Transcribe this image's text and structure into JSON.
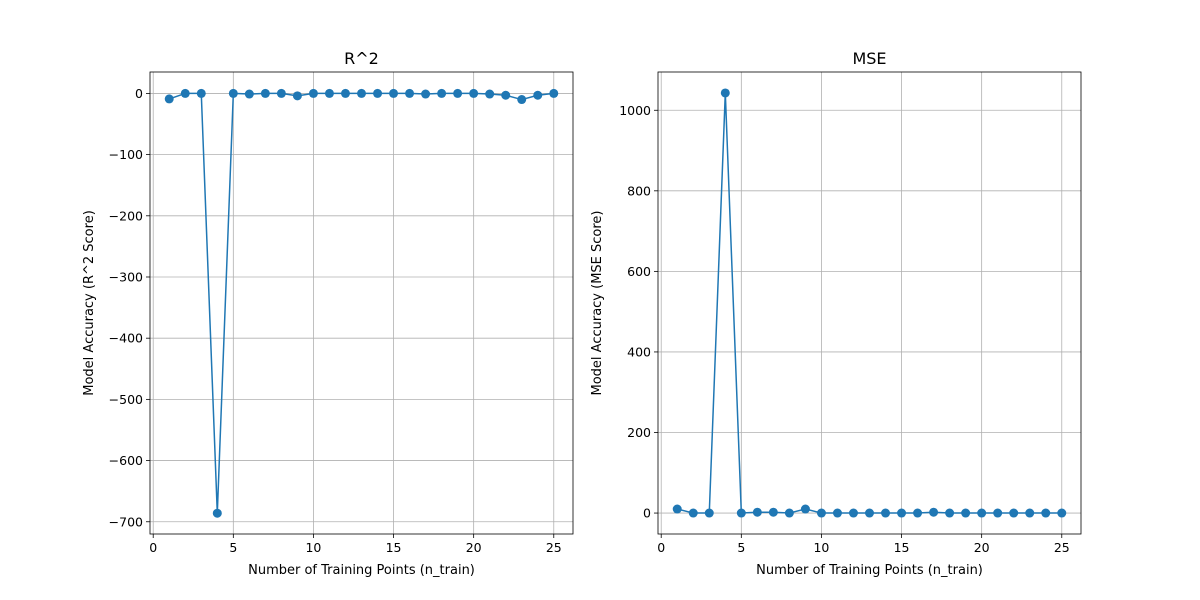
{
  "chart_data": [
    {
      "type": "line",
      "title": "R^2",
      "xlabel": "Number of Training Points (n_train)",
      "ylabel": "Model Accuracy (R^2 Score)",
      "xlim": [
        -0.2,
        26.2
      ],
      "ylim": [
        -720,
        35
      ],
      "xticks": [
        0,
        5,
        10,
        15,
        20,
        25
      ],
      "xtick_labels": [
        "0",
        "5",
        "10",
        "15",
        "20",
        "25"
      ],
      "yticks": [
        0,
        -100,
        -200,
        -300,
        -400,
        -500,
        -600,
        -700
      ],
      "ytick_labels": [
        "0",
        "−100",
        "−200",
        "−300",
        "−400",
        "−500",
        "−600",
        "−700"
      ],
      "grid": true,
      "marker": "circle",
      "color": "#1f77b4",
      "x": [
        1,
        2,
        3,
        4,
        5,
        6,
        7,
        8,
        9,
        10,
        11,
        12,
        13,
        14,
        15,
        16,
        17,
        18,
        19,
        20,
        21,
        22,
        23,
        24,
        25
      ],
      "y": [
        -9,
        0,
        0,
        -686,
        0,
        -1,
        0,
        0,
        -4,
        0,
        0,
        0,
        0,
        0,
        0,
        0,
        -1,
        0,
        0,
        0,
        -1,
        -3,
        -10,
        -3,
        0
      ]
    },
    {
      "type": "line",
      "title": "MSE",
      "xlabel": "Number of Training Points (n_train)",
      "ylabel": "Model Accuracy (MSE Score)",
      "xlim": [
        -0.2,
        26.2
      ],
      "ylim": [
        -52,
        1095
      ],
      "xticks": [
        0,
        5,
        10,
        15,
        20,
        25
      ],
      "xtick_labels": [
        "0",
        "5",
        "10",
        "15",
        "20",
        "25"
      ],
      "yticks": [
        0,
        200,
        400,
        600,
        800,
        1000
      ],
      "ytick_labels": [
        "0",
        "200",
        "400",
        "600",
        "800",
        "1000"
      ],
      "grid": true,
      "marker": "circle",
      "color": "#1f77b4",
      "x": [
        1,
        2,
        3,
        4,
        5,
        6,
        7,
        8,
        9,
        10,
        11,
        12,
        13,
        14,
        15,
        16,
        17,
        18,
        19,
        20,
        21,
        22,
        23,
        24,
        25
      ],
      "y": [
        10,
        0,
        0,
        1043,
        0,
        2,
        2,
        0,
        10,
        0,
        0,
        0,
        0,
        0,
        0,
        0,
        2,
        0,
        0,
        0,
        0,
        0,
        0,
        0,
        0
      ]
    }
  ]
}
